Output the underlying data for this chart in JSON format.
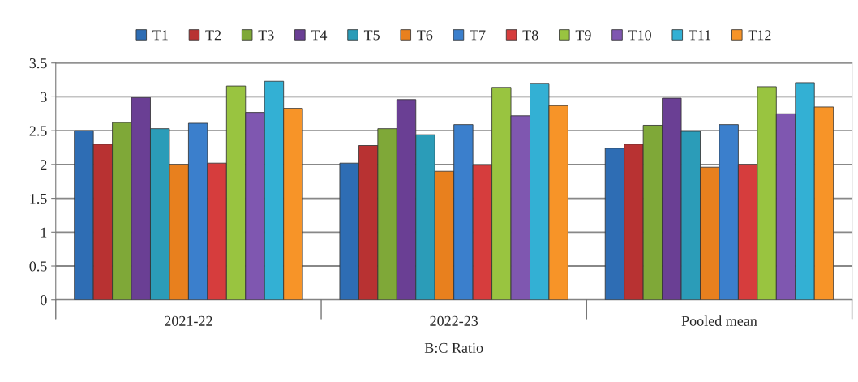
{
  "chart_data": {
    "type": "bar",
    "xlabel": "B:C Ratio",
    "categories": [
      "2021-22",
      "2022-23",
      "Pooled mean"
    ],
    "series": [
      {
        "name": "T1",
        "color": "#2e6db4",
        "values": [
          2.5,
          2.02,
          2.24
        ]
      },
      {
        "name": "T2",
        "color": "#b83232",
        "values": [
          2.3,
          2.28,
          2.3
        ]
      },
      {
        "name": "T3",
        "color": "#7fa838",
        "values": [
          2.62,
          2.53,
          2.58
        ]
      },
      {
        "name": "T4",
        "color": "#6a3f94",
        "values": [
          2.99,
          2.96,
          2.98
        ]
      },
      {
        "name": "T5",
        "color": "#2b9cb8",
        "values": [
          2.53,
          2.44,
          2.49
        ]
      },
      {
        "name": "T6",
        "color": "#e8801e",
        "values": [
          2.0,
          1.9,
          1.96
        ]
      },
      {
        "name": "T7",
        "color": "#3b7fcc",
        "values": [
          2.61,
          2.59,
          2.59
        ]
      },
      {
        "name": "T8",
        "color": "#d63d3d",
        "values": [
          2.02,
          1.99,
          2.0
        ]
      },
      {
        "name": "T9",
        "color": "#99c440",
        "values": [
          3.16,
          3.14,
          3.15
        ]
      },
      {
        "name": "T10",
        "color": "#7f57b0",
        "values": [
          2.77,
          2.72,
          2.75
        ]
      },
      {
        "name": "T11",
        "color": "#33b0d4",
        "values": [
          3.23,
          3.2,
          3.21
        ]
      },
      {
        "name": "T12",
        "color": "#f79428",
        "values": [
          2.83,
          2.87,
          2.85
        ]
      }
    ],
    "ylim": [
      0,
      3.5
    ],
    "yticks": [
      0,
      0.5,
      1,
      1.5,
      2,
      2.5,
      3,
      3.5
    ],
    "grid": "y",
    "legend": "top"
  }
}
